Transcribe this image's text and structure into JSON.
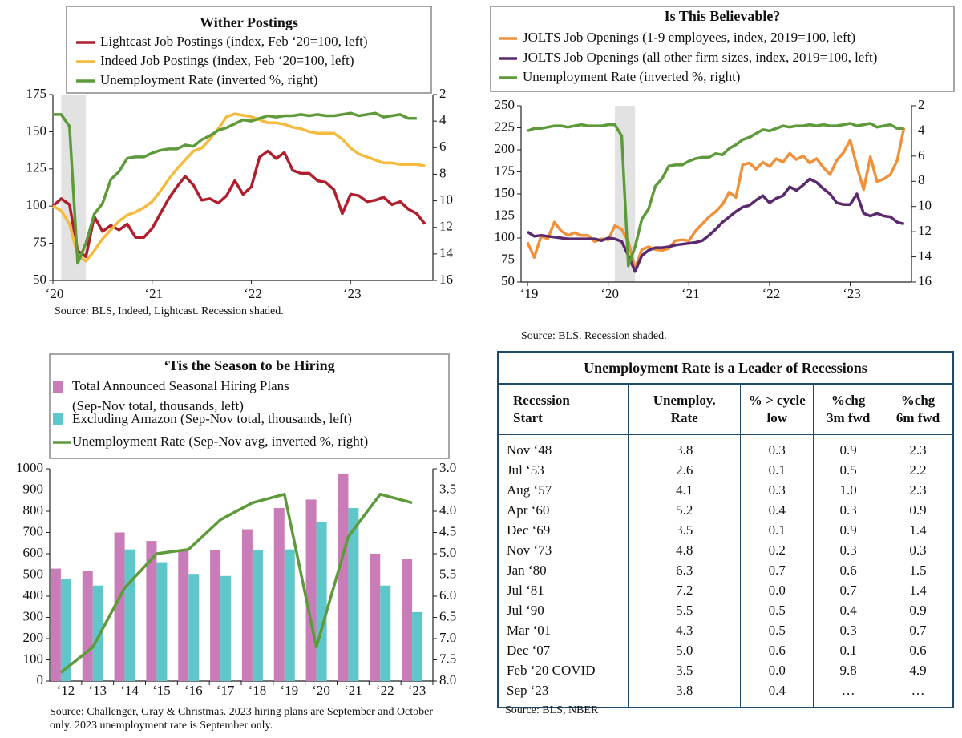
{
  "chart_data": [
    {
      "type": "line",
      "title": "Wither Postings",
      "x": [
        2020,
        2020.083,
        2020.167,
        2020.25,
        2020.333,
        2020.417,
        2020.5,
        2020.583,
        2020.667,
        2020.75,
        2020.833,
        2020.917,
        2021,
        2021.083,
        2021.167,
        2021.25,
        2021.333,
        2021.417,
        2021.5,
        2021.583,
        2021.667,
        2021.75,
        2021.833,
        2021.917,
        2022,
        2022.083,
        2022.167,
        2022.25,
        2022.333,
        2022.417,
        2022.5,
        2022.583,
        2022.667,
        2022.75,
        2022.833,
        2022.917,
        2023,
        2023.083,
        2023.167,
        2023.25,
        2023.333,
        2023.417,
        2023.5,
        2023.583,
        2023.667,
        2023.75
      ],
      "xlim": [
        2020,
        2023.83
      ],
      "xticks": [
        {
          "value": 2020,
          "label": "‘20"
        },
        {
          "value": 2021,
          "label": "‘21"
        },
        {
          "value": 2022,
          "label": "‘22"
        },
        {
          "value": 2023,
          "label": "‘23"
        }
      ],
      "ylim": [
        50,
        175
      ],
      "yticks": [
        50,
        75,
        100,
        125,
        150,
        175
      ],
      "y2lim": [
        2,
        16
      ],
      "y2ticks": [
        2,
        4,
        6,
        8,
        10,
        12,
        14,
        16
      ],
      "y2_inverted": true,
      "recession": [
        2020.083,
        2020.333
      ],
      "series": [
        {
          "name": "Lightcast Job Postings (index, Feb ‘20=100, left)",
          "color": "#b01f2e",
          "values": [
            100,
            105,
            101,
            70,
            66,
            93,
            83,
            87,
            84,
            88,
            79,
            79,
            85,
            95,
            105,
            113,
            120,
            114,
            104,
            105,
            102,
            107,
            117,
            108,
            113,
            133,
            137,
            132,
            136,
            124,
            122,
            122,
            117,
            116,
            111,
            95,
            108,
            107,
            103,
            104,
            106,
            101,
            103,
            98,
            95,
            88
          ]
        },
        {
          "name": "Indeed Job Postings (index, Feb ‘20=100, left)",
          "color": "#f4bb3f",
          "values": [
            100,
            97,
            88,
            67,
            63,
            70,
            78,
            84,
            90,
            94,
            96,
            99,
            103,
            110,
            118,
            125,
            131,
            137,
            139,
            145,
            152,
            160,
            162,
            161,
            160,
            158,
            156,
            156,
            155,
            153,
            152,
            150,
            149,
            149,
            149,
            145,
            139,
            135,
            133,
            131,
            129,
            129,
            128,
            128,
            128,
            127
          ]
        },
        {
          "name": "Unemployment Rate (inverted %, right)",
          "color": "#5e9a3a",
          "axis": "y2",
          "values": [
            3.5,
            3.5,
            4.4,
            14.7,
            13.2,
            11.0,
            10.2,
            8.4,
            7.8,
            6.8,
            6.7,
            6.7,
            6.4,
            6.2,
            6.1,
            6.1,
            5.8,
            5.9,
            5.4,
            5.1,
            4.7,
            4.5,
            4.2,
            3.9,
            4.0,
            3.8,
            3.6,
            3.7,
            3.6,
            3.6,
            3.5,
            3.6,
            3.5,
            3.6,
            3.6,
            3.5,
            3.4,
            3.6,
            3.5,
            3.4,
            3.7,
            3.6,
            3.5,
            3.8,
            3.8,
            null
          ]
        }
      ],
      "source": "Source: BLS, Indeed, Lightcast. Recession shaded."
    },
    {
      "type": "line",
      "title": "Is This Believable?",
      "x": [
        2019,
        2019.083,
        2019.167,
        2019.25,
        2019.333,
        2019.417,
        2019.5,
        2019.583,
        2019.667,
        2019.75,
        2019.833,
        2019.917,
        2020,
        2020.083,
        2020.167,
        2020.25,
        2020.333,
        2020.417,
        2020.5,
        2020.583,
        2020.667,
        2020.75,
        2020.833,
        2020.917,
        2021,
        2021.083,
        2021.167,
        2021.25,
        2021.333,
        2021.417,
        2021.5,
        2021.583,
        2021.667,
        2021.75,
        2021.833,
        2021.917,
        2022,
        2022.083,
        2022.167,
        2022.25,
        2022.333,
        2022.417,
        2022.5,
        2022.583,
        2022.667,
        2022.75,
        2022.833,
        2022.917,
        2023,
        2023.083,
        2023.167,
        2023.25,
        2023.333,
        2023.417,
        2023.5,
        2023.583,
        2023.667
      ],
      "xlim": [
        2018.92,
        2023.76
      ],
      "xticks": [
        {
          "value": 2019,
          "label": "‘19"
        },
        {
          "value": 2020,
          "label": "‘20"
        },
        {
          "value": 2021,
          "label": "‘21"
        },
        {
          "value": 2022,
          "label": "‘22"
        },
        {
          "value": 2023,
          "label": "‘23"
        }
      ],
      "ylim": [
        50,
        250
      ],
      "yticks": [
        50,
        75,
        100,
        125,
        150,
        175,
        200,
        225,
        250
      ],
      "y2lim": [
        2,
        16
      ],
      "y2ticks": [
        2,
        4,
        6,
        8,
        10,
        12,
        14,
        16
      ],
      "y2_inverted": true,
      "recession": [
        2020.083,
        2020.333
      ],
      "series": [
        {
          "name": "JOLTS Job Openings (1-9 employees, index, 2019=100, left)",
          "color": "#f0913a",
          "values": [
            95,
            78,
            102,
            99,
            118,
            108,
            103,
            106,
            103,
            103,
            96,
            99,
            98,
            114,
            110,
            96,
            65,
            87,
            90,
            87,
            86,
            88,
            97,
            98,
            97,
            108,
            116,
            124,
            130,
            138,
            152,
            146,
            183,
            185,
            178,
            186,
            181,
            190,
            186,
            196,
            189,
            193,
            185,
            190,
            180,
            172,
            188,
            197,
            211,
            181,
            155,
            192,
            164,
            167,
            172,
            188,
            225
          ]
        },
        {
          "name": "JOLTS Job Openings (all other firm sizes, index, 2019=100, left)",
          "color": "#5b2a6e",
          "values": [
            107,
            102,
            103,
            102,
            101,
            100,
            99,
            99,
            99,
            99,
            99,
            97,
            100,
            99,
            96,
            80,
            62,
            80,
            86,
            89,
            89,
            90,
            92,
            93,
            94,
            95,
            97,
            103,
            110,
            118,
            124,
            130,
            135,
            137,
            143,
            148,
            140,
            145,
            148,
            158,
            154,
            160,
            167,
            163,
            156,
            150,
            140,
            138,
            138,
            150,
            128,
            125,
            128,
            125,
            124,
            118,
            116
          ]
        },
        {
          "name": "Unemployment Rate (inverted %, right)",
          "color": "#5e9a3a",
          "axis": "y2",
          "values": [
            4.0,
            3.8,
            3.8,
            3.7,
            3.6,
            3.6,
            3.7,
            3.6,
            3.5,
            3.6,
            3.6,
            3.6,
            3.5,
            3.5,
            4.4,
            14.7,
            13.2,
            11.0,
            10.2,
            8.4,
            7.8,
            6.8,
            6.7,
            6.7,
            6.4,
            6.2,
            6.1,
            6.1,
            5.8,
            5.9,
            5.4,
            5.1,
            4.7,
            4.5,
            4.2,
            3.9,
            4.0,
            3.8,
            3.6,
            3.7,
            3.6,
            3.6,
            3.5,
            3.6,
            3.5,
            3.6,
            3.6,
            3.5,
            3.4,
            3.6,
            3.5,
            3.4,
            3.7,
            3.6,
            3.5,
            3.8,
            3.8
          ]
        }
      ],
      "source": "Source: BLS. Recession shaded."
    },
    {
      "type": "bar",
      "title": "‘Tis the Season to be Hiring",
      "categories": [
        "‘12",
        "‘13",
        "‘14",
        "‘15",
        "‘16",
        "‘17",
        "‘18",
        "‘19",
        "‘20",
        "‘21",
        "‘22",
        "‘23"
      ],
      "ylim": [
        0,
        1000
      ],
      "yticks": [
        0,
        100,
        200,
        300,
        400,
        500,
        600,
        700,
        800,
        900,
        1000
      ],
      "y2lim": [
        3,
        8
      ],
      "y2ticks": [
        {
          "value": 3,
          "label": "3.0"
        },
        3.5,
        {
          "value": 4,
          "label": "4.0"
        },
        4.5,
        {
          "value": 5,
          "label": "5.0"
        },
        5.5,
        {
          "value": 6,
          "label": "6.0"
        },
        6.5,
        {
          "value": 7,
          "label": "7.0"
        },
        7.5,
        {
          "value": 8,
          "label": "8.0"
        }
      ],
      "y2_inverted": true,
      "series": [
        {
          "name": "Total Announced Seasonal Hiring Plans (Sep-Nov total, thousands, left)",
          "color": "#c97cb8",
          "values": [
            530,
            520,
            700,
            660,
            620,
            615,
            715,
            815,
            855,
            975,
            600,
            575
          ]
        },
        {
          "name": "Excluding Amazon (Sep-Nov total, thousands, left)",
          "color": "#5ec7c9",
          "values": [
            480,
            450,
            620,
            560,
            505,
            495,
            615,
            620,
            750,
            815,
            450,
            325
          ]
        },
        {
          "name": "Unemployment Rate (Sep-Nov avg, inverted %, right)",
          "color": "#5e9a3a",
          "axis": "y2",
          "values": [
            7.8,
            7.2,
            5.8,
            5.0,
            4.9,
            4.2,
            3.8,
            3.6,
            7.2,
            4.6,
            3.6,
            3.8
          ]
        }
      ],
      "source": "Source: Challenger, Gray & Christmas. 2023 hiring plans are September and October only. 2023 unemployment rate is September only."
    }
  ],
  "table": {
    "title": "Unemployment Rate is a Leader of Recessions",
    "columns": [
      [
        "Recession",
        "Start"
      ],
      [
        "Unemploy.",
        "Rate"
      ],
      [
        "% > cycle",
        "low"
      ],
      [
        "%chg",
        "3m fwd"
      ],
      [
        "%chg",
        "6m fwd"
      ]
    ],
    "rows": [
      [
        "Nov ‘48",
        "3.8",
        "0.3",
        "0.9",
        "2.3"
      ],
      [
        "Jul ‘53",
        "2.6",
        "0.1",
        "0.5",
        "2.2"
      ],
      [
        "Aug ‘57",
        "4.1",
        "0.3",
        "1.0",
        "2.3"
      ],
      [
        "Apr ‘60",
        "5.2",
        "0.4",
        "0.3",
        "0.9"
      ],
      [
        "Dec ‘69",
        "3.5",
        "0.1",
        "0.9",
        "1.4"
      ],
      [
        "Nov ‘73",
        "4.8",
        "0.2",
        "0.3",
        "0.3"
      ],
      [
        "Jan ‘80",
        "6.3",
        "0.7",
        "0.6",
        "1.5"
      ],
      [
        "Jul ‘81",
        "7.2",
        "0.0",
        "0.7",
        "1.4"
      ],
      [
        "Jul ‘90",
        "5.5",
        "0.5",
        "0.4",
        "0.9"
      ],
      [
        "Mar ‘01",
        "4.3",
        "0.5",
        "0.3",
        "0.7"
      ],
      [
        "Dec ‘07",
        "5.0",
        "0.6",
        "0.1",
        "0.6"
      ],
      [
        "Feb ‘20 COVID",
        "3.5",
        "0.0",
        "9.8",
        "4.9"
      ],
      [
        "Sep ‘23",
        "3.8",
        "0.4",
        "…",
        "…"
      ]
    ],
    "source": "Source: BLS, NBER"
  }
}
